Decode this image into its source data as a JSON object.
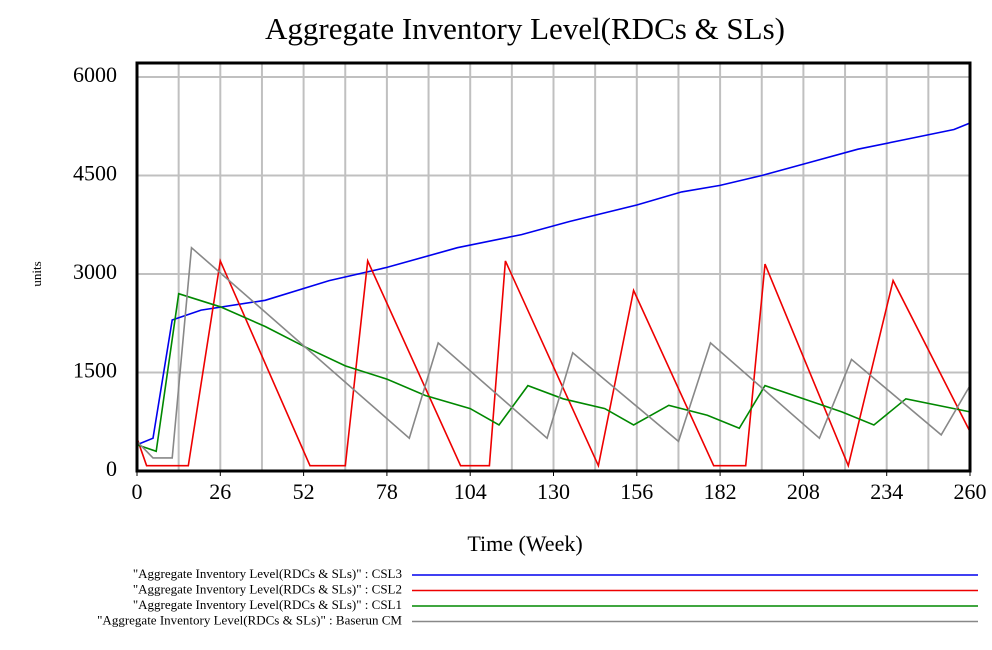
{
  "chart_data": {
    "type": "line",
    "title": "Aggregate Inventory Level(RDCs & SLs)",
    "x_label": "Time (Week)",
    "y_label": "units",
    "xlim": [
      0,
      260
    ],
    "ylim": [
      0,
      6000
    ],
    "xticks": [
      0,
      26,
      52,
      78,
      104,
      130,
      156,
      182,
      208,
      234,
      260
    ],
    "xgrid": [
      13,
      26,
      39,
      52,
      65,
      78,
      91,
      104,
      117,
      130,
      143,
      156,
      169,
      182,
      195,
      208,
      221,
      234,
      247
    ],
    "yticks": [
      0,
      1500,
      3000,
      4500,
      6000
    ],
    "grid": true,
    "series": [
      {
        "name": "\"Aggregate Inventory Level(RDCs & SLs)\" : CSL3",
        "color": "#0000ee",
        "x": [
          0,
          5,
          11,
          20,
          40,
          60,
          78,
          100,
          120,
          135,
          156,
          170,
          182,
          195,
          210,
          225,
          240,
          255,
          260
        ],
        "values": [
          400,
          500,
          2300,
          2450,
          2600,
          2900,
          3100,
          3400,
          3600,
          3800,
          4050,
          4250,
          4350,
          4500,
          4700,
          4900,
          5050,
          5200,
          5300
        ]
      },
      {
        "name": "\"Aggregate Inventory Level(RDCs & SLs)\" : CSL2",
        "color": "#ee0000",
        "x": [
          0,
          3,
          16,
          26,
          54,
          65,
          72,
          101,
          110,
          115,
          144,
          155,
          180,
          190,
          196,
          222,
          236,
          260
        ],
        "values": [
          500,
          80,
          80,
          3200,
          80,
          80,
          3200,
          80,
          80,
          3200,
          80,
          2750,
          80,
          80,
          3150,
          80,
          2900,
          600
        ]
      },
      {
        "name": "\"Aggregate Inventory Level(RDCs & SLs)\" : CSL1",
        "color": "#008800",
        "x": [
          0,
          6,
          13,
          26,
          40,
          52,
          65,
          78,
          90,
          104,
          113,
          122,
          133,
          146,
          155,
          166,
          178,
          188,
          196,
          208,
          220,
          230,
          240,
          260
        ],
        "values": [
          400,
          300,
          2700,
          2500,
          2200,
          1900,
          1600,
          1400,
          1150,
          950,
          700,
          1300,
          1100,
          950,
          700,
          1000,
          850,
          650,
          1300,
          1100,
          900,
          700,
          1100,
          900
        ]
      },
      {
        "name": "\"Aggregate Inventory Level(RDCs & SLs)\" : Baserun CM",
        "color": "#888888",
        "x": [
          0,
          5,
          11,
          17,
          85,
          94,
          128,
          136,
          169,
          179,
          213,
          223,
          251,
          260
        ],
        "values": [
          450,
          200,
          200,
          3400,
          500,
          1950,
          500,
          1800,
          450,
          1950,
          500,
          1700,
          550,
          1300
        ]
      }
    ]
  }
}
